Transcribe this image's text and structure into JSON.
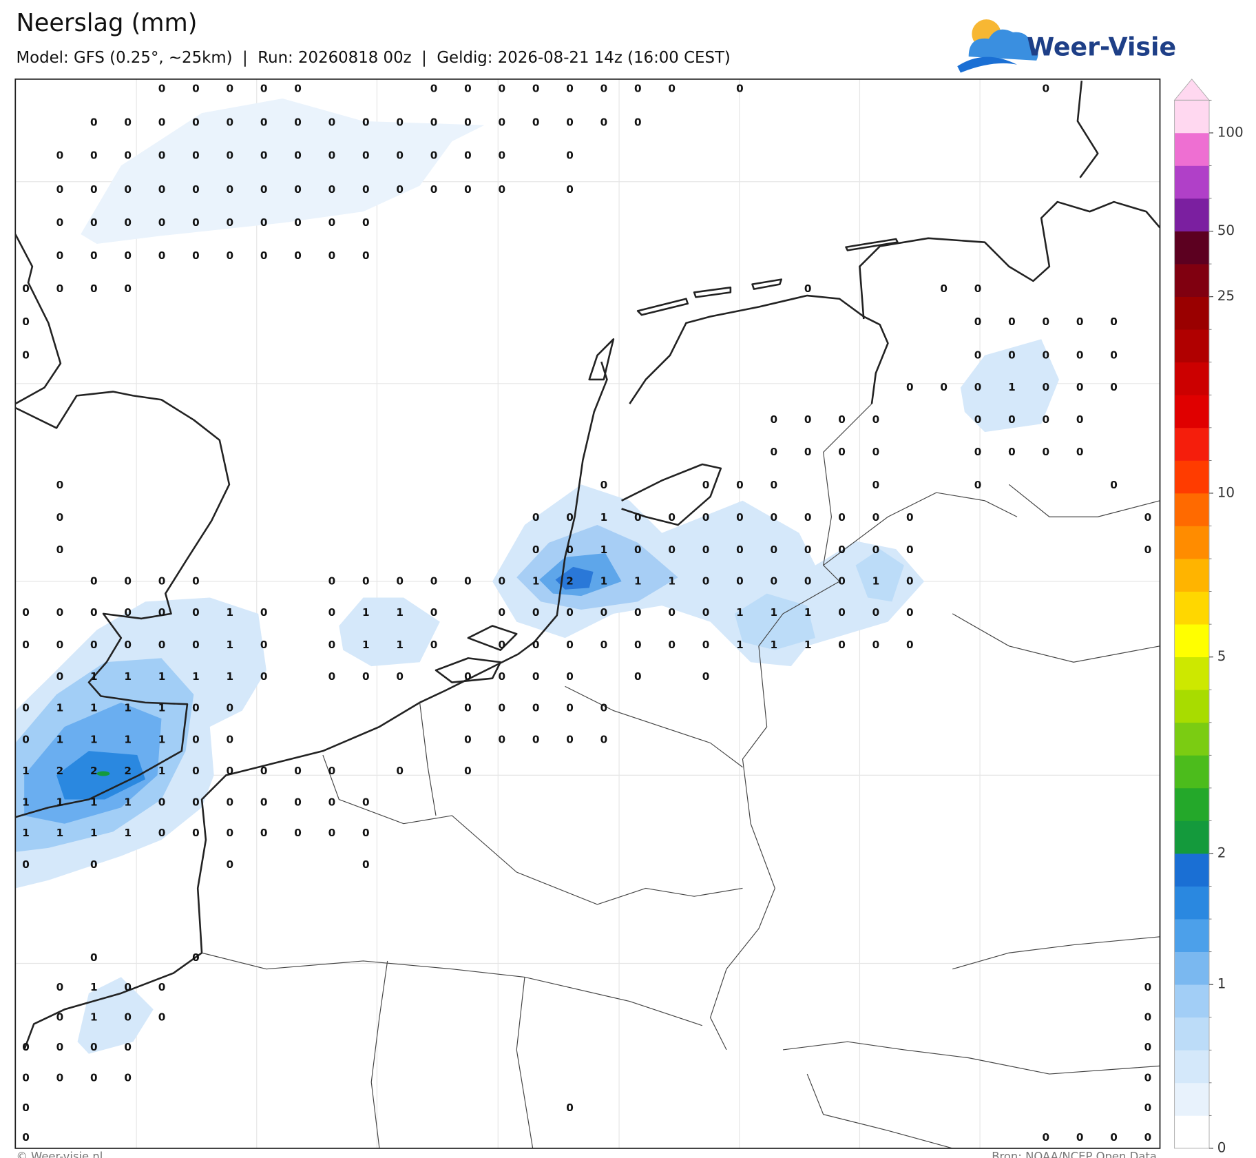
{
  "header": {
    "title": "Neerslag (mm)",
    "subtitle": "Model: GFS (0.25°, ~25km)  |  Run: 20260818 00z  |  Geldig: 2026-08-21 14z (16:00 CEST)"
  },
  "logo": {
    "text": "Weer-Visie"
  },
  "map": {
    "values": [
      [
        null,
        null,
        null,
        null,
        0,
        0,
        0,
        0,
        0,
        null,
        null,
        null,
        0,
        0,
        0,
        0,
        0,
        0,
        0,
        0,
        null,
        0,
        null,
        null,
        null,
        null,
        null,
        null,
        null,
        null,
        0,
        null,
        null,
        null
      ],
      [
        null,
        null,
        0,
        0,
        0,
        0,
        0,
        0,
        0,
        0,
        0,
        0,
        0,
        0,
        0,
        0,
        0,
        0,
        0,
        null,
        null,
        null,
        null,
        null,
        null,
        null,
        null,
        null,
        null,
        null,
        null,
        null,
        null,
        null
      ],
      [
        null,
        0,
        0,
        0,
        0,
        0,
        0,
        0,
        0,
        0,
        0,
        0,
        0,
        0,
        0,
        null,
        0,
        null,
        null,
        null,
        null,
        null,
        null,
        null,
        null,
        null,
        null,
        null,
        null,
        null,
        null,
        null,
        null,
        null
      ],
      [
        null,
        0,
        0,
        0,
        0,
        0,
        0,
        0,
        0,
        0,
        0,
        0,
        0,
        0,
        0,
        null,
        0,
        null,
        null,
        null,
        null,
        null,
        null,
        null,
        null,
        null,
        null,
        null,
        null,
        null,
        null,
        null,
        null,
        null
      ],
      [
        null,
        0,
        0,
        0,
        0,
        0,
        0,
        0,
        0,
        0,
        0,
        null,
        null,
        null,
        null,
        null,
        null,
        null,
        null,
        null,
        null,
        null,
        null,
        null,
        null,
        null,
        null,
        null,
        null,
        null,
        null,
        null,
        null,
        null
      ],
      [
        null,
        0,
        0,
        0,
        0,
        0,
        0,
        0,
        0,
        0,
        0,
        null,
        null,
        null,
        null,
        null,
        null,
        null,
        null,
        null,
        null,
        null,
        null,
        null,
        null,
        null,
        null,
        null,
        null,
        null,
        null,
        null,
        null,
        null
      ],
      [
        0,
        0,
        0,
        0,
        null,
        null,
        null,
        null,
        null,
        null,
        null,
        null,
        null,
        null,
        null,
        null,
        null,
        null,
        null,
        null,
        null,
        null,
        null,
        0,
        null,
        null,
        null,
        0,
        0,
        null,
        null,
        null,
        null,
        null
      ],
      [
        0,
        null,
        null,
        null,
        null,
        null,
        null,
        null,
        null,
        null,
        null,
        null,
        null,
        null,
        null,
        null,
        null,
        null,
        null,
        null,
        null,
        null,
        null,
        null,
        null,
        null,
        null,
        null,
        0,
        0,
        0,
        0,
        0,
        null
      ],
      [
        0,
        null,
        null,
        null,
        null,
        null,
        null,
        null,
        null,
        null,
        null,
        null,
        null,
        null,
        null,
        null,
        null,
        null,
        null,
        null,
        null,
        null,
        null,
        null,
        null,
        null,
        null,
        null,
        0,
        0,
        0,
        0,
        0,
        null
      ],
      [
        null,
        null,
        null,
        null,
        null,
        null,
        null,
        null,
        null,
        null,
        null,
        null,
        null,
        null,
        null,
        null,
        null,
        null,
        null,
        null,
        null,
        null,
        null,
        null,
        null,
        null,
        0,
        0,
        0,
        1,
        0,
        0,
        0,
        null
      ],
      [
        null,
        null,
        null,
        null,
        null,
        null,
        null,
        null,
        null,
        null,
        null,
        null,
        null,
        null,
        null,
        null,
        null,
        null,
        null,
        null,
        null,
        null,
        0,
        0,
        0,
        0,
        null,
        null,
        0,
        0,
        0,
        0,
        null,
        null
      ],
      [
        null,
        null,
        null,
        null,
        null,
        null,
        null,
        null,
        null,
        null,
        null,
        null,
        null,
        null,
        null,
        null,
        null,
        null,
        null,
        null,
        null,
        null,
        0,
        0,
        0,
        0,
        null,
        null,
        0,
        0,
        0,
        0,
        null,
        null
      ],
      [
        null,
        0,
        null,
        null,
        null,
        null,
        null,
        null,
        null,
        null,
        null,
        null,
        null,
        null,
        null,
        null,
        null,
        0,
        null,
        null,
        0,
        0,
        0,
        null,
        null,
        0,
        null,
        null,
        0,
        null,
        null,
        null,
        0,
        null
      ],
      [
        null,
        0,
        null,
        null,
        null,
        null,
        null,
        null,
        null,
        null,
        null,
        null,
        null,
        null,
        null,
        0,
        0,
        1,
        0,
        0,
        0,
        0,
        0,
        0,
        0,
        0,
        0,
        null,
        null,
        null,
        null,
        null,
        null,
        0
      ],
      [
        null,
        0,
        null,
        null,
        null,
        null,
        null,
        null,
        null,
        null,
        null,
        null,
        null,
        null,
        null,
        0,
        0,
        1,
        0,
        0,
        0,
        0,
        0,
        0,
        0,
        0,
        0,
        null,
        null,
        null,
        null,
        null,
        null,
        0
      ],
      [
        null,
        null,
        0,
        0,
        0,
        0,
        null,
        null,
        null,
        0,
        0,
        0,
        0,
        0,
        0,
        1,
        2,
        1,
        1,
        1,
        0,
        0,
        0,
        0,
        0,
        1,
        0,
        null,
        null,
        null,
        null,
        null,
        null,
        null
      ],
      [
        0,
        0,
        0,
        0,
        0,
        0,
        1,
        0,
        null,
        0,
        1,
        1,
        0,
        null,
        0,
        0,
        0,
        0,
        0,
        0,
        0,
        1,
        1,
        1,
        0,
        0,
        0,
        null,
        null,
        null,
        null,
        null,
        null,
        null
      ],
      [
        0,
        0,
        0,
        0,
        0,
        0,
        1,
        0,
        null,
        0,
        1,
        1,
        0,
        null,
        0,
        0,
        0,
        0,
        0,
        0,
        0,
        1,
        1,
        1,
        0,
        0,
        0,
        null,
        null,
        null,
        null,
        null,
        null,
        null
      ],
      [
        null,
        0,
        1,
        1,
        1,
        1,
        1,
        0,
        null,
        0,
        0,
        0,
        null,
        0,
        0,
        0,
        0,
        null,
        0,
        null,
        0,
        null,
        null,
        null,
        null,
        null,
        null,
        null,
        null,
        null,
        null,
        null,
        null,
        null
      ],
      [
        0,
        1,
        1,
        1,
        1,
        0,
        0,
        null,
        null,
        null,
        null,
        null,
        null,
        0,
        0,
        0,
        0,
        0,
        null,
        null,
        null,
        null,
        null,
        null,
        null,
        null,
        null,
        null,
        null,
        null,
        null,
        null,
        null,
        null
      ],
      [
        0,
        1,
        1,
        1,
        1,
        0,
        0,
        null,
        null,
        null,
        null,
        null,
        null,
        0,
        0,
        0,
        0,
        0,
        null,
        null,
        null,
        null,
        null,
        null,
        null,
        null,
        null,
        null,
        null,
        null,
        null,
        null,
        null,
        null
      ],
      [
        1,
        2,
        2,
        2,
        1,
        0,
        0,
        0,
        0,
        0,
        null,
        0,
        null,
        0,
        null,
        null,
        null,
        null,
        null,
        null,
        null,
        null,
        null,
        null,
        null,
        null,
        null,
        null,
        null,
        null,
        null,
        null,
        null,
        null
      ],
      [
        1,
        1,
        1,
        1,
        0,
        0,
        0,
        0,
        0,
        0,
        0,
        null,
        null,
        null,
        null,
        null,
        null,
        null,
        null,
        null,
        null,
        null,
        null,
        null,
        null,
        null,
        null,
        null,
        null,
        null,
        null,
        null,
        null,
        null
      ],
      [
        1,
        1,
        1,
        1,
        0,
        0,
        0,
        0,
        0,
        0,
        0,
        null,
        null,
        null,
        null,
        null,
        null,
        null,
        null,
        null,
        null,
        null,
        null,
        null,
        null,
        null,
        null,
        null,
        null,
        null,
        null,
        null,
        null,
        null
      ],
      [
        0,
        null,
        0,
        null,
        null,
        null,
        0,
        null,
        null,
        null,
        0,
        null,
        null,
        null,
        null,
        null,
        null,
        null,
        null,
        null,
        null,
        null,
        null,
        null,
        null,
        null,
        null,
        null,
        null,
        null,
        null,
        null,
        null,
        null
      ],
      [
        null,
        null,
        null,
        null,
        null,
        null,
        null,
        null,
        null,
        null,
        null,
        null,
        null,
        null,
        null,
        null,
        null,
        null,
        null,
        null,
        null,
        null,
        null,
        null,
        null,
        null,
        null,
        null,
        null,
        null,
        null,
        null,
        null,
        null
      ],
      [
        null,
        null,
        null,
        null,
        null,
        null,
        null,
        null,
        null,
        null,
        null,
        null,
        null,
        null,
        null,
        null,
        null,
        null,
        null,
        null,
        null,
        null,
        null,
        null,
        null,
        null,
        null,
        null,
        null,
        null,
        null,
        null,
        null,
        null
      ],
      [
        null,
        null,
        0,
        null,
        null,
        0,
        null,
        null,
        null,
        null,
        null,
        null,
        null,
        null,
        null,
        null,
        null,
        null,
        null,
        null,
        null,
        null,
        null,
        null,
        null,
        null,
        null,
        null,
        null,
        null,
        null,
        null,
        null,
        null
      ],
      [
        null,
        0,
        1,
        0,
        0,
        null,
        null,
        null,
        null,
        null,
        null,
        null,
        null,
        null,
        null,
        null,
        null,
        null,
        null,
        null,
        null,
        null,
        null,
        null,
        null,
        null,
        null,
        null,
        null,
        null,
        null,
        null,
        null,
        0
      ],
      [
        null,
        0,
        1,
        0,
        0,
        null,
        null,
        null,
        null,
        null,
        null,
        null,
        null,
        null,
        null,
        null,
        null,
        null,
        null,
        null,
        null,
        null,
        null,
        null,
        null,
        null,
        null,
        null,
        null,
        null,
        null,
        null,
        null,
        0
      ],
      [
        0,
        0,
        0,
        0,
        null,
        null,
        null,
        null,
        null,
        null,
        null,
        null,
        null,
        null,
        null,
        null,
        null,
        null,
        null,
        null,
        null,
        null,
        null,
        null,
        null,
        null,
        null,
        null,
        null,
        null,
        null,
        null,
        null,
        0
      ],
      [
        0,
        0,
        0,
        0,
        null,
        null,
        null,
        null,
        null,
        null,
        null,
        null,
        null,
        null,
        null,
        null,
        null,
        null,
        null,
        null,
        null,
        null,
        null,
        null,
        null,
        null,
        null,
        null,
        null,
        null,
        null,
        null,
        null,
        0
      ],
      [
        0,
        null,
        null,
        null,
        null,
        null,
        null,
        null,
        null,
        null,
        null,
        null,
        null,
        null,
        null,
        null,
        0,
        null,
        null,
        null,
        null,
        null,
        null,
        null,
        null,
        null,
        null,
        null,
        null,
        null,
        null,
        null,
        null,
        0
      ],
      [
        0,
        null,
        null,
        null,
        null,
        null,
        null,
        null,
        null,
        null,
        null,
        null,
        null,
        null,
        null,
        null,
        null,
        null,
        null,
        null,
        null,
        null,
        null,
        null,
        null,
        null,
        null,
        null,
        null,
        null,
        0,
        0,
        0,
        0
      ]
    ]
  },
  "colorbar": {
    "levels": [
      0,
      0.2,
      0.4,
      0.6,
      0.8,
      1,
      1.25,
      1.5,
      1.75,
      2,
      2.5,
      3,
      3.5,
      4,
      4.5,
      5,
      6,
      7,
      8,
      9,
      10,
      12.5,
      15,
      17.5,
      20,
      22.5,
      25,
      35,
      50,
      65,
      80,
      100,
      150
    ],
    "colors": [
      "#ffffff",
      "#e8f2fc",
      "#d4e8fa",
      "#bcdcf8",
      "#a2cef6",
      "#7ab8f0",
      "#4ca0ea",
      "#2a88e0",
      "#1a6fd4",
      "#149a3c",
      "#24a82a",
      "#4cbc1c",
      "#7bcc12",
      "#a8dc00",
      "#cde800",
      "#ffff00",
      "#ffd700",
      "#ffb400",
      "#ff8c00",
      "#ff6a00",
      "#ff3c00",
      "#f51e0c",
      "#e00000",
      "#cc0000",
      "#b00000",
      "#9a0000",
      "#800010",
      "#5c0020",
      "#7b1fa0",
      "#b040c8",
      "#ee6fd2",
      "#ffd8f0"
    ],
    "ticks": [
      0,
      1,
      2,
      5,
      10,
      25,
      50,
      100
    ]
  },
  "footer": {
    "left": "© Weer-visie.nl",
    "right": "Bron: NOAA/NCEP Open Data"
  }
}
